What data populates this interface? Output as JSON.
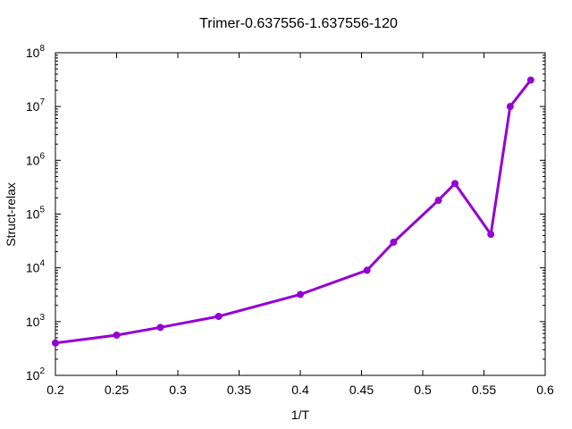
{
  "chart_data": {
    "type": "line",
    "title": "Trimer-0.637556-1.637556-120",
    "xlabel": "1/T",
    "ylabel": "Struct-relax",
    "xlim": [
      0.2,
      0.6
    ],
    "ylim": [
      100,
      100000000
    ],
    "yscale": "log",
    "grid": false,
    "legend": "none",
    "x_ticks": [
      {
        "value": 0.2,
        "label": "0.2"
      },
      {
        "value": 0.25,
        "label": "0.25"
      },
      {
        "value": 0.3,
        "label": "0.3"
      },
      {
        "value": 0.35,
        "label": "0.35"
      },
      {
        "value": 0.4,
        "label": "0.4"
      },
      {
        "value": 0.45,
        "label": "0.45"
      },
      {
        "value": 0.5,
        "label": "0.5"
      },
      {
        "value": 0.55,
        "label": "0.55"
      },
      {
        "value": 0.6,
        "label": "0.6"
      }
    ],
    "y_ticks": [
      {
        "value": 100,
        "base": "10",
        "exp": "2"
      },
      {
        "value": 1000,
        "base": "10",
        "exp": "3"
      },
      {
        "value": 10000,
        "base": "10",
        "exp": "4"
      },
      {
        "value": 100000,
        "base": "10",
        "exp": "5"
      },
      {
        "value": 1000000,
        "base": "10",
        "exp": "6"
      },
      {
        "value": 10000000,
        "base": "10",
        "exp": "7"
      },
      {
        "value": 100000000,
        "base": "10",
        "exp": "8"
      }
    ],
    "series": [
      {
        "color": "#9400d3",
        "x": [
          0.2,
          0.25,
          0.2857,
          0.3333,
          0.4,
          0.4545,
          0.4762,
          0.5128,
          0.5263,
          0.5556,
          0.5714,
          0.5882
        ],
        "y": [
          400,
          560,
          780,
          1250,
          3200,
          9000,
          30000,
          180000,
          370000,
          42000,
          10000000,
          31000000
        ]
      }
    ]
  }
}
